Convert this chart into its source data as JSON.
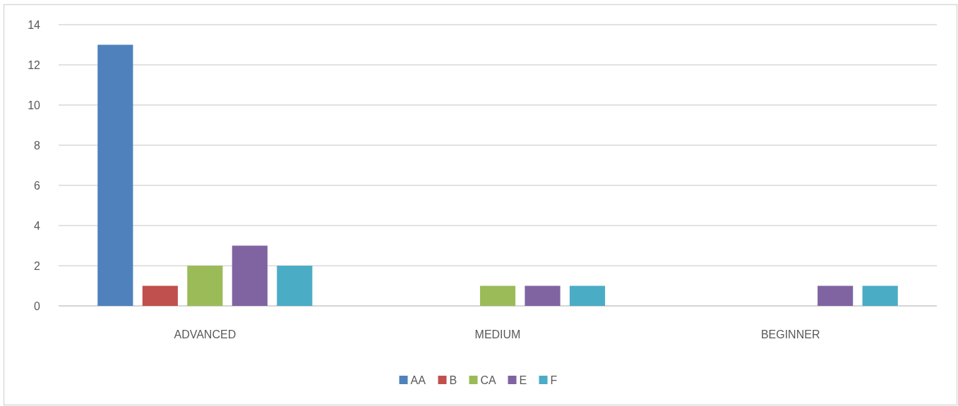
{
  "chart_data": {
    "type": "bar",
    "categories": [
      "ADVANCED",
      "MEDIUM",
      "BEGINNER"
    ],
    "series": [
      {
        "name": "AA",
        "color": "#4f81bd",
        "values": [
          13,
          0,
          0
        ]
      },
      {
        "name": "B",
        "color": "#c0504d",
        "values": [
          1,
          0,
          0
        ]
      },
      {
        "name": "CA",
        "color": "#9bbb59",
        "values": [
          2,
          1,
          0
        ]
      },
      {
        "name": "E",
        "color": "#8064a2",
        "values": [
          3,
          1,
          1
        ]
      },
      {
        "name": "F",
        "color": "#4bacc6",
        "values": [
          2,
          1,
          1
        ]
      }
    ],
    "ylim": [
      0,
      14
    ],
    "yticks": [
      0,
      2,
      4,
      6,
      8,
      10,
      12,
      14
    ],
    "grid": "y",
    "legend": "bottom"
  }
}
